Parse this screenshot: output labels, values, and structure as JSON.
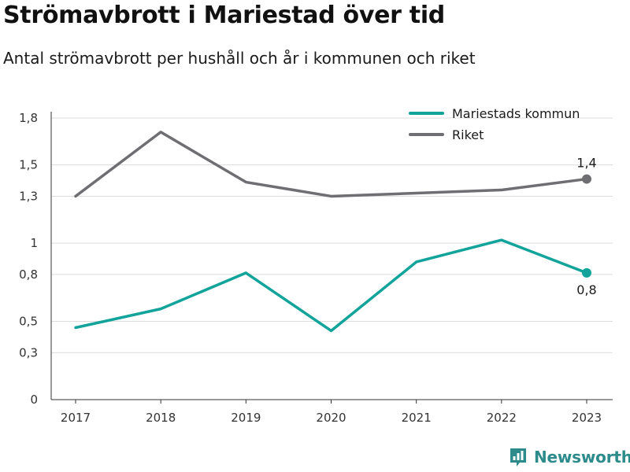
{
  "chart_data": {
    "type": "line",
    "title": "Strömavbrott i Mariestad över tid",
    "subtitle": "Antal strömavbrott per hushåll och år i kommunen och riket",
    "categories": [
      "2017",
      "2018",
      "2019",
      "2020",
      "2021",
      "2022",
      "2023"
    ],
    "series": [
      {
        "name": "Mariestads kommun",
        "color": "#12a39a",
        "values": [
          0.46,
          0.58,
          0.81,
          0.44,
          0.88,
          1.02,
          0.81
        ],
        "end_label": "0,8"
      },
      {
        "name": "Riket",
        "color": "#6e6e73",
        "values": [
          1.3,
          1.71,
          1.39,
          1.3,
          1.32,
          1.34,
          1.41
        ],
        "end_label": "1,4"
      }
    ],
    "yticks": [
      {
        "value": 0,
        "label": "0"
      },
      {
        "value": 0.3,
        "label": "0,3"
      },
      {
        "value": 0.5,
        "label": "0,5"
      },
      {
        "value": 0.8,
        "label": "0,8"
      },
      {
        "value": 1.0,
        "label": "1"
      },
      {
        "value": 1.3,
        "label": "1,3"
      },
      {
        "value": 1.5,
        "label": "1,5"
      },
      {
        "value": 1.8,
        "label": "1,8"
      }
    ],
    "ylim": [
      0,
      1.8
    ],
    "grid": true,
    "legend_position": "top-right",
    "xlabel": "",
    "ylabel": ""
  },
  "brand": {
    "name": "Newsworthy",
    "icon": "newsworthy-logo-icon",
    "color": "#2e8b8b"
  }
}
